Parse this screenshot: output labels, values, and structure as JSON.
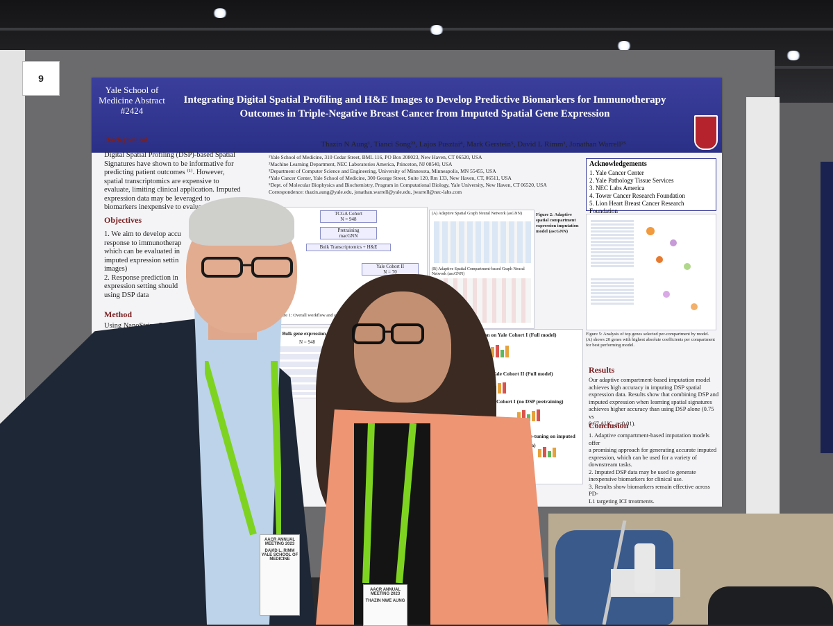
{
  "booth": {
    "number": "9"
  },
  "poster": {
    "org_lines": "Yale School of Medicine Abstract #2424",
    "title": "Integrating Digital Spatial Profiling and H&E Images to Develop Predictive Biomarkers for Immunotherapy Outcomes in Triple-Negative Breast Cancer from Imputed Spatial Gene Expression",
    "authors": "Thazin N Aung¹, Tianci Song²³, Lajos Pusztai⁴, Mark Gerstein⁵, David L Rimm¹, Jonathan Warrell²⁵",
    "affiliations": "¹Yale School of Medicine, 310 Cedar Street, BML 116, PO Box 208023, New Haven, CT 06520, USA\n²Machine Learning Department, NEC Laboratories America, Princeton, NJ 08540, USA\n³Department of Computer Science and Engineering, University of Minnesota, Minneapolis, MN 55455, USA\n⁴Yale Cancer Center, Yale School of Medicine, 300 George Street, Suite 120, Rm 133, New Haven, CT, 06511, USA\n⁵Dept. of Molecular Biophysics and Biochemistry, Program in Computational Biology, Yale University, New Haven, CT 06520, USA\nCorrespondence: thazin.aung@yale.edu, jonathan.warrell@yale.edu, jwarrell@nec-labs.com",
    "background_header": "Background",
    "background_text": "Digital Spatial Profiling (DSP)-based Spatial\nSignatures have shown to be informative for\npredicting patient outcomes ⁽¹⁾. However,\nspatial transcriptomics are expensive to\nevaluate, limiting clinical application. Imputed\nexpression data may be leveraged to\nbiomarkers inexpensive to evalua",
    "objectives_header": "Objectives",
    "objectives_text": "1. We aim to develop accu\nresponse to immunotherap\nwhich can be evaluated in\nimputed expression settin\nimages)\n2. Response prediction in\nexpression setting should\nusing DSP data",
    "method_header": "Method",
    "method_text": "Using NanoString D\nprofiled spatial",
    "ack_header": "Acknowledgements",
    "ack_items": [
      "1. Yale Cancer Center",
      "2. Yale Pathology Tissue Services",
      "3. NEC Labs America",
      "4. Tower Cancer Research Foundation",
      "5. Lion Heart Breast Cancer Research Foundation"
    ],
    "flow_top": "TCGA Cohort\nN = 948",
    "flow_mid": "Pretraining\nmacGNN",
    "flow_bulk": "Bulk Transcriptomics + H&E",
    "flow_yale2": "Yale Cohort II\nN = 70",
    "fig1_caption": "Figure 1: Overall workflow and cohort information",
    "panel_a_title": "(A) Adaptive Spatial Graph Neural Network (asGNN)",
    "panel_b_title": "(B) Adaptive Spatial Compartment-based Graph Neural Network (ascGNN)",
    "fig2_caption": "Figure 2: Adaptive spatial compartment expression imputation model (ascGNN)",
    "table_title": "(A) Bulk gene expression prediction on TCGA",
    "table_n": "N = 948",
    "rcb1": "RCB prediction on Yale Cohort I (Full model)",
    "rcb2": "prediction on Yale Cohort II (Full model)",
    "rcb3": "Cohort I (no DSP pretraining)",
    "rcb4": "fine-tuning on imputed data)",
    "fig5_caption": "Figure 5: Analysis of top genes selected per-compartment by model. (A) shows 20 genes with highest absolute coefficients per compartment for best performing model.",
    "results_header": "Results",
    "results_text": "Our adaptive compartment-based imputation model\nachieves high accuracy in imputing DSP spatial\nexpression data. Results show that combining DSP and\nimputed expression when learning spatial signatures\nachieves higher accuracy than using DSP alone (0.75 vs\n0.67 AUC, p<0.01).",
    "conclusion_header": "Conclusion",
    "conclusion_text": "1. Adaptive compartment-based imputation models offer\na promising approach for generating accurate imputed\nexpression, which can be used for a variety of\ndownstream tasks.\n2. Imputed DSP data may be used to generate\ninexpensive biomarkers for clinical use.\n3. Results show biomarkers remain effective across PD-\nL1 targeting ICI treatments."
  },
  "badges": {
    "man": "DAVID L. RIMM\nYALE SCHOOL OF MEDICINE",
    "woman": "THAZIN NWE AUNG",
    "meeting": "AACR ANNUAL MEETING 2023"
  },
  "colors": {
    "banner": "#2f3490",
    "jacket_woman": "#ee9574",
    "lanyard": "#7ed321"
  }
}
